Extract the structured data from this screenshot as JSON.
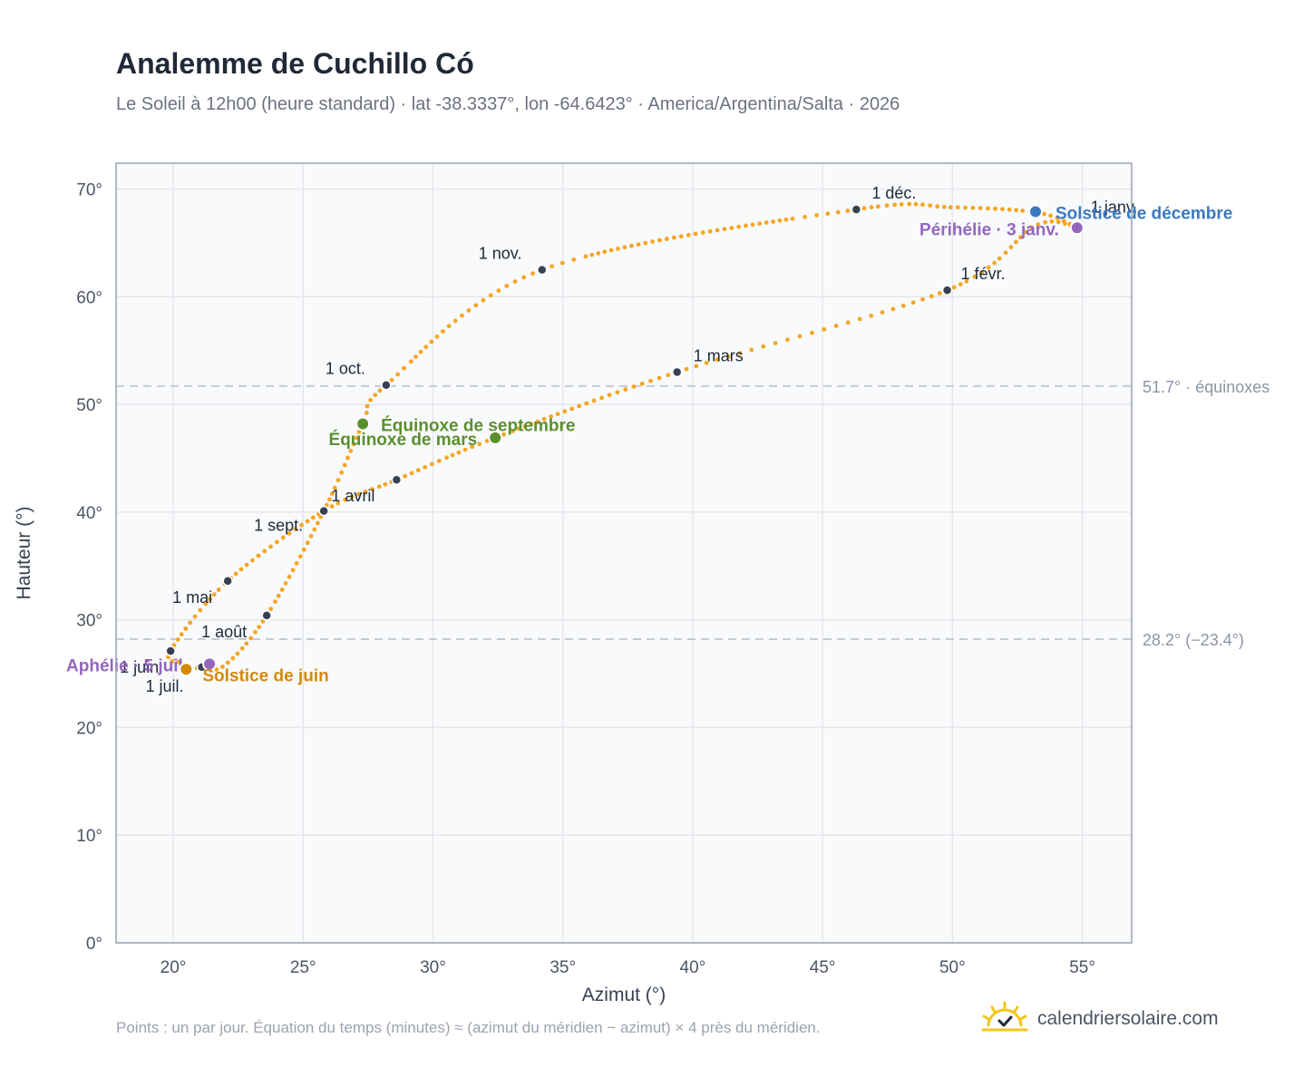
{
  "header": {
    "title": "Analemme de Cuchillo Có",
    "subtitle": "Le Soleil à 12h00 (heure standard) · lat -38.3337°, lon -64.6423° · America/Argentina/Salta · 2026"
  },
  "footer": {
    "note": "Points : un par jour. Équation du temps (minutes) ≈ (azimut du méridien − azimut) × 4 près du méridien.",
    "brand": "calendriersolaire.com",
    "brand_icon": "sun-check-icon"
  },
  "colors": {
    "curve": "#f5a623",
    "month": "#374151",
    "solstice_dec": "#3b78c2",
    "solstice_jun": "#d4890c",
    "equinox": "#5b8f2e",
    "apsis": "#9467bd",
    "plot_bg": "#f8fafc",
    "grid": "#e5e7eb",
    "refline": "#c5cbd3"
  },
  "chart_data": {
    "type": "scatter",
    "xlabel": "Azimut (°)",
    "ylabel": "Hauteur (°)",
    "xlim": [
      17.8,
      56.9
    ],
    "ylim": [
      0,
      72.4
    ],
    "xticks": [
      20,
      25,
      30,
      35,
      40,
      45,
      50,
      55
    ],
    "yticks": [
      0,
      10,
      20,
      30,
      40,
      50,
      60,
      70
    ],
    "tick_suffix": "°",
    "grid": true,
    "path_anchors": [
      [
        54.8,
        66.4
      ],
      [
        53.2,
        66.6
      ],
      [
        49.8,
        60.6
      ],
      [
        39.4,
        53.0
      ],
      [
        32.4,
        46.9
      ],
      [
        28.6,
        43.0
      ],
      [
        25.8,
        40.1
      ],
      [
        22.1,
        33.6
      ],
      [
        19.9,
        27.1
      ],
      [
        20.3,
        26.0
      ],
      [
        21.0,
        25.5
      ],
      [
        22.0,
        25.8
      ],
      [
        23.6,
        30.4
      ],
      [
        25.8,
        40.1
      ],
      [
        27.3,
        48.2
      ],
      [
        28.2,
        51.8
      ],
      [
        34.2,
        62.5
      ],
      [
        46.3,
        68.1
      ],
      [
        50.0,
        68.3
      ],
      [
        53.3,
        67.8
      ],
      [
        54.8,
        66.4
      ]
    ],
    "reference_lines": [
      {
        "y": 51.7,
        "label": "51.7° · équinoxes"
      },
      {
        "y": 28.2,
        "label": "28.2° (−23.4°)"
      }
    ],
    "month_markers": [
      {
        "label": "1 janv.",
        "x": 54.8,
        "y": 66.4
      },
      {
        "label": "1 févr.",
        "x": 49.8,
        "y": 60.6
      },
      {
        "label": "1 mars",
        "x": 39.4,
        "y": 53.0
      },
      {
        "label": "1 avril",
        "x": 28.6,
        "y": 43.0
      },
      {
        "label": "1 mai",
        "x": 22.1,
        "y": 33.6
      },
      {
        "label": "1 juin",
        "x": 19.9,
        "y": 27.1
      },
      {
        "label": "1 juil.",
        "x": 21.1,
        "y": 25.6
      },
      {
        "label": "1 août",
        "x": 23.6,
        "y": 30.4
      },
      {
        "label": "1 sept.",
        "x": 25.8,
        "y": 40.1
      },
      {
        "label": "1 oct.",
        "x": 28.2,
        "y": 51.8
      },
      {
        "label": "1 nov.",
        "x": 34.2,
        "y": 62.5
      },
      {
        "label": "1 déc.",
        "x": 46.3,
        "y": 68.1
      }
    ],
    "events": [
      {
        "label": "Solstice de décembre",
        "x": 53.2,
        "y": 67.9,
        "kind": "solstice_dec"
      },
      {
        "label": "Périhélie · 3 janv.",
        "x": 54.8,
        "y": 66.4,
        "kind": "apsis"
      },
      {
        "label": "Équinoxe de septembre",
        "x": 27.3,
        "y": 48.2,
        "kind": "equinox"
      },
      {
        "label": "Équinoxe de mars",
        "x": 32.4,
        "y": 46.9,
        "kind": "equinox"
      },
      {
        "label": "Aphélie · 5 juil.",
        "x": 21.4,
        "y": 25.9,
        "kind": "apsis"
      },
      {
        "label": "Solstice de juin",
        "x": 20.5,
        "y": 25.4,
        "kind": "solstice_jun"
      }
    ]
  }
}
